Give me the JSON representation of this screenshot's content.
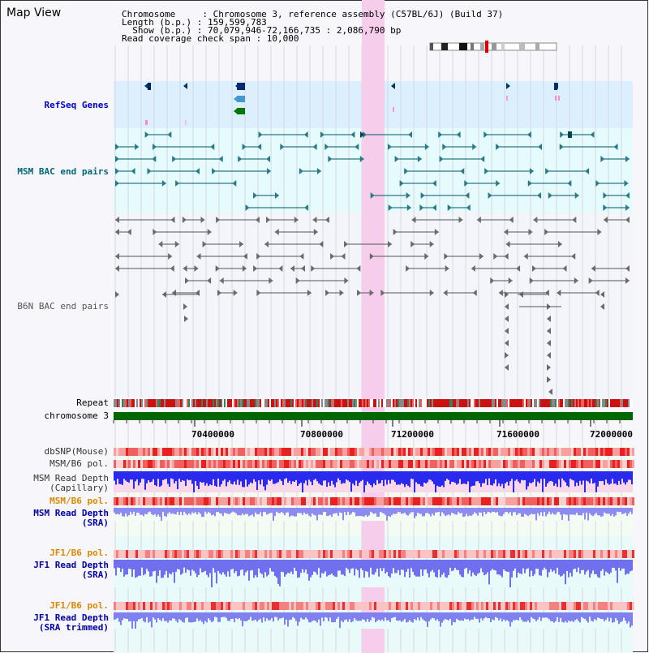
{
  "title": "Map View",
  "header": {
    "lines": [
      "Chromosome     : Chromosome 3, reference assembly (C57BL/6J) (Build 37)",
      "Length (b.p.) : 159,599,783",
      "  Show (b.p.) : 70,079,946-72,166,735 : 2,086,790 bp",
      "Read coverage check span : 10,000"
    ]
  },
  "tracks": {
    "refseq": "RefSeq Genes",
    "msm_bac": "MSM BAC end pairs",
    "b6n_bac": "B6N BAC end pairs",
    "repeat": "Repeat",
    "chromosome": "chromosome 3",
    "dbsnp": "dbSNP(Mouse)",
    "msm_b6_pol_1": "MSM/B6 pol.",
    "msm_depth_cap_1": "MSM Read Depth",
    "msm_depth_cap_2": "(Capillary)",
    "msm_b6_pol_2": "MSM/B6 pol.",
    "msm_depth_sra_1": "MSM Read Depth",
    "msm_depth_sra_2": "(SRA)",
    "jf1_b6_pol_1": "JF1/B6 pol.",
    "jf1_depth_sra_1": "JF1 Read Depth",
    "jf1_depth_sra_2": "(SRA)",
    "jf1_b6_pol_2": "JF1/B6 pol.",
    "jf1_depth_trim_1": "JF1 Read Depth",
    "jf1_depth_trim_2": "(SRA trimmed)"
  },
  "ticks": [
    "70400000",
    "70800000",
    "71200000",
    "71600000",
    "72000000"
  ],
  "colors": {
    "refseq_label": "#0000cc",
    "msm_bac_label": "#006677",
    "b6n_label": "#555555",
    "msm_pol_label": "#cc8800",
    "msm_depth_label": "#0000cc",
    "highlight": "#f8d4ee"
  }
}
